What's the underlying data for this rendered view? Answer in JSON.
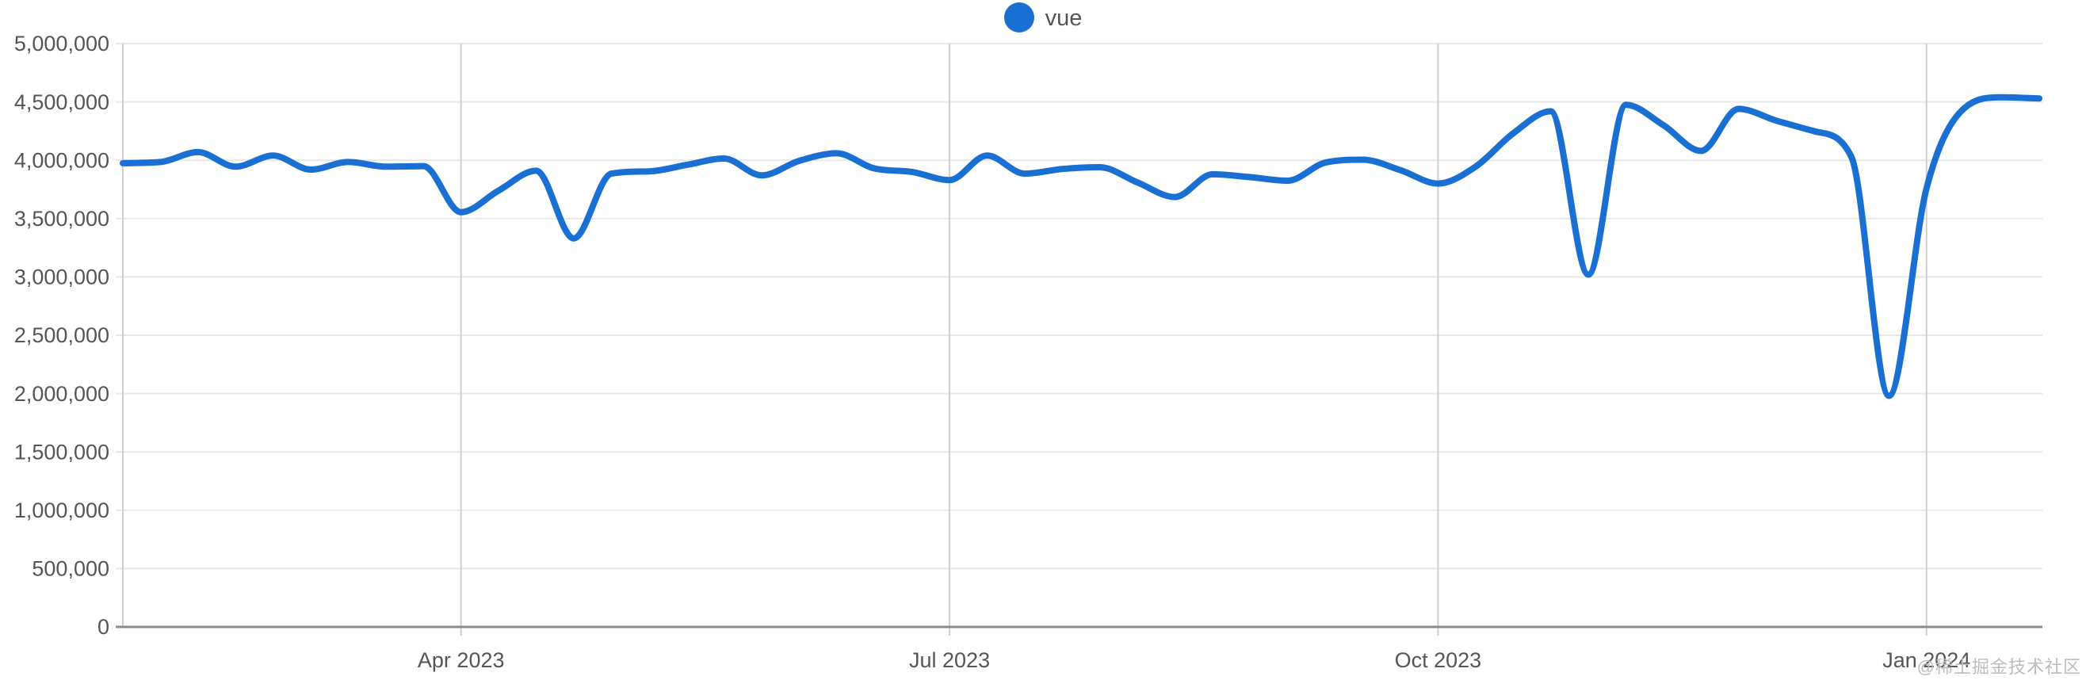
{
  "legend": {
    "series": [
      {
        "label": "vue",
        "color": "#1a6fd2"
      }
    ]
  },
  "watermark": "@稀土掘金技术社区",
  "colors": {
    "line": "#1a6fd2",
    "grid_horizontal": "#e7e7e7",
    "grid_vertical": "#cfcfcf",
    "axis_line": "#8c8c8c",
    "tick_label": "#555555",
    "background": "#ffffff"
  },
  "chart_data": {
    "type": "line",
    "title": "",
    "xlabel": "",
    "ylabel": "",
    "ylim": [
      0,
      5000000
    ],
    "grid": true,
    "legend_position": "top-center",
    "y_ticks": [
      {
        "value": 0,
        "label": "0"
      },
      {
        "value": 500000,
        "label": "500,000"
      },
      {
        "value": 1000000,
        "label": "1,000,000"
      },
      {
        "value": 1500000,
        "label": "1,500,000"
      },
      {
        "value": 2000000,
        "label": "2,000,000"
      },
      {
        "value": 2500000,
        "label": "2,500,000"
      },
      {
        "value": 3000000,
        "label": "3,000,000"
      },
      {
        "value": 3500000,
        "label": "3,500,000"
      },
      {
        "value": 4000000,
        "label": "4,000,000"
      },
      {
        "value": 4500000,
        "label": "4,500,000"
      },
      {
        "value": 5000000,
        "label": "5,000,000"
      }
    ],
    "x_ticks": [
      {
        "index": 9,
        "label": "Apr 2023"
      },
      {
        "index": 22,
        "label": "Jul 2023"
      },
      {
        "index": 35,
        "label": "Oct 2023"
      },
      {
        "index": 48,
        "label": "Jan 2024"
      }
    ],
    "series": [
      {
        "name": "vue",
        "color": "#1a6fd2",
        "x": [
          "2023-01-29",
          "2023-02-05",
          "2023-02-12",
          "2023-02-19",
          "2023-02-26",
          "2023-03-05",
          "2023-03-12",
          "2023-03-19",
          "2023-03-26",
          "2023-04-02",
          "2023-04-09",
          "2023-04-16",
          "2023-04-23",
          "2023-04-30",
          "2023-05-07",
          "2023-05-14",
          "2023-05-21",
          "2023-05-28",
          "2023-06-04",
          "2023-06-11",
          "2023-06-18",
          "2023-06-25",
          "2023-07-02",
          "2023-07-09",
          "2023-07-16",
          "2023-07-23",
          "2023-07-30",
          "2023-08-06",
          "2023-08-13",
          "2023-08-20",
          "2023-08-27",
          "2023-09-03",
          "2023-09-10",
          "2023-09-17",
          "2023-09-24",
          "2023-10-01",
          "2023-10-08",
          "2023-10-15",
          "2023-10-22",
          "2023-10-29",
          "2023-11-05",
          "2023-11-12",
          "2023-11-19",
          "2023-11-26",
          "2023-12-03",
          "2023-12-10",
          "2023-12-17",
          "2023-12-24",
          "2023-12-31",
          "2024-01-07",
          "2024-01-14",
          "2024-01-21"
        ],
        "values": [
          3975000,
          3985000,
          4070000,
          3945000,
          4040000,
          3920000,
          3985000,
          3945000,
          3950000,
          3555000,
          3740000,
          3910000,
          3330000,
          3885000,
          3905000,
          3960000,
          4015000,
          3870000,
          3995000,
          4060000,
          3930000,
          3900000,
          3830000,
          4040000,
          3885000,
          3925000,
          3940000,
          3810000,
          3685000,
          3880000,
          3855000,
          3825000,
          3980000,
          4005000,
          3915000,
          3800000,
          3945000,
          4230000,
          4420000,
          3020000,
          4475000,
          4300000,
          4080000,
          4440000,
          4340000,
          4250000,
          4030000,
          1980000,
          3760000,
          4445000,
          4540000,
          4530000
        ]
      }
    ]
  }
}
